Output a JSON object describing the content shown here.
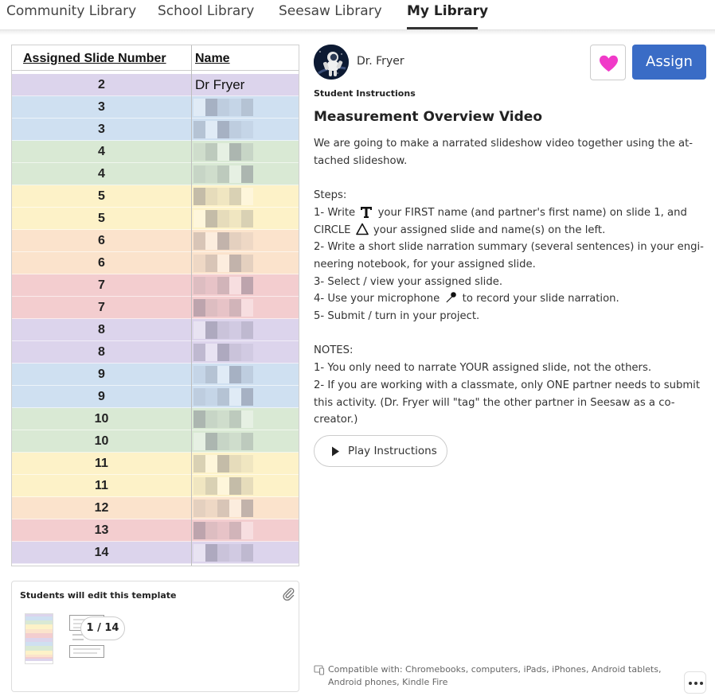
{
  "tabs": [
    {
      "label": "Community Library",
      "active": false
    },
    {
      "label": "School Library",
      "active": false
    },
    {
      "label": "Seesaw Library",
      "active": false
    },
    {
      "label": "My Library",
      "active": true
    }
  ],
  "sheet": {
    "col1_header": "Assigned Slide Number",
    "col2_header": "Name",
    "rows": [
      {
        "number": "2",
        "name": "Dr Fryer",
        "color": "#dcd4ec"
      },
      {
        "number": "3",
        "name": "",
        "color": "#cfe0f1"
      },
      {
        "number": "3",
        "name": "",
        "color": "#cfe0f1"
      },
      {
        "number": "4",
        "name": "",
        "color": "#d9e9d4"
      },
      {
        "number": "4",
        "name": "",
        "color": "#d9e9d4"
      },
      {
        "number": "5",
        "name": "",
        "color": "#fdf2c8"
      },
      {
        "number": "5",
        "name": "",
        "color": "#fdf2c8"
      },
      {
        "number": "6",
        "name": "",
        "color": "#fbe3cc"
      },
      {
        "number": "6",
        "name": "",
        "color": "#fbe3cc"
      },
      {
        "number": "7",
        "name": "",
        "color": "#f3cdcf"
      },
      {
        "number": "7",
        "name": "",
        "color": "#f3cdcf"
      },
      {
        "number": "8",
        "name": "",
        "color": "#dcd4ec"
      },
      {
        "number": "8",
        "name": "",
        "color": "#dcd4ec"
      },
      {
        "number": "9",
        "name": "",
        "color": "#cfe0f1"
      },
      {
        "number": "9",
        "name": "",
        "color": "#cfe0f1"
      },
      {
        "number": "10",
        "name": "",
        "color": "#d9e9d4"
      },
      {
        "number": "10",
        "name": "",
        "color": "#d9e9d4"
      },
      {
        "number": "11",
        "name": "",
        "color": "#fdf2c8"
      },
      {
        "number": "11",
        "name": "",
        "color": "#fdf2c8"
      },
      {
        "number": "12",
        "name": "",
        "color": "#fbe3cc"
      },
      {
        "number": "13",
        "name": "",
        "color": "#f3cdcf"
      },
      {
        "number": "14",
        "name": "",
        "color": "#dcd4ec"
      }
    ]
  },
  "template": {
    "title": "Students will edit this template",
    "page_indicator": "1 / 14",
    "clip_icon": "paperclip-icon"
  },
  "author": {
    "name": "Dr. Fryer",
    "avatar_icon": "astronaut-avatar"
  },
  "actions": {
    "favorite_icon": "heart-icon",
    "assign_label": "Assign",
    "accent": "#3a6cc6",
    "heart_color": "#f03ac8"
  },
  "instructions": {
    "label": "Student Instructions",
    "title": "Measurement Overview Video",
    "intro_1": "We are going to make a narrated slideshow video together using the at-",
    "intro_2": "tached slideshow.",
    "steps_label": "Steps:",
    "step1_a": "1- Write",
    "step1_b": "your FIRST name (and partner's first name) on slide 1, and",
    "step1_c": "CIRCLE",
    "step1_d": "your assigned slide and name(s) on the left.",
    "step2_a": "2- Write a short slide narration summary (several sentences) in your engi-",
    "step2_b": "neering notebook, for your assigned slide.",
    "step3": "3- Select / view your assigned slide.",
    "step4_a": "4- Use your microphone",
    "step4_b": "to record your slide narration.",
    "step5": "5- Submit / turn in your project.",
    "notes_label": "NOTES:",
    "note1": "1- You only need to narrate YOUR assigned slide, not the others.",
    "note2_a": "2- If you are working with a classmate, only ONE partner needs to submit",
    "note2_b": "this activity. (Dr. Fryer will \"tag\" the other partner in Seesaw as a co-",
    "note2_c": "creator.)"
  },
  "play": {
    "label": "Play Instructions"
  },
  "compat": {
    "text": "Compatible with: Chromebooks, computers, iPads, iPhones, Android tablets, Android phones, Kindle Fire"
  }
}
